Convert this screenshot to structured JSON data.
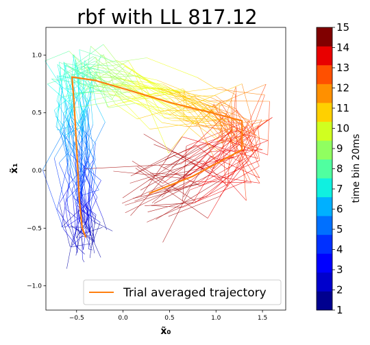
{
  "chart_data": {
    "type": "line",
    "title": "rbf with LL 817.12",
    "xlabel": "x̃₀",
    "ylabel": "x̃₁",
    "xlim": [
      -0.83,
      1.75
    ],
    "ylim": [
      -1.21,
      1.24
    ],
    "xticks": [
      -0.5,
      0.0,
      0.5,
      1.0,
      1.5
    ],
    "xtick_labels": [
      "−0.5",
      "0.0",
      "0.5",
      "1.0",
      "1.5"
    ],
    "yticks": [
      -1.0,
      -0.5,
      0.0,
      0.5,
      1.0
    ],
    "ytick_labels": [
      "−1.0",
      "−0.5",
      "0.0",
      "0.5",
      "1.0"
    ],
    "grid": false,
    "legend": {
      "position": "lower-right",
      "entries": [
        "Trial averaged trajectory"
      ]
    },
    "average_trajectory": {
      "name": "Trial averaged trajectory",
      "color": "#ff7f0e",
      "points": [
        [
          -0.4,
          -0.58
        ],
        [
          -0.44,
          -0.5
        ],
        [
          -0.47,
          -0.25
        ],
        [
          -0.49,
          0.05
        ],
        [
          -0.51,
          0.35
        ],
        [
          -0.53,
          0.62
        ],
        [
          -0.55,
          0.81
        ],
        [
          -0.3,
          0.78
        ],
        [
          0.0,
          0.71
        ],
        [
          0.5,
          0.59
        ],
        [
          0.95,
          0.5
        ],
        [
          1.28,
          0.43
        ],
        [
          1.28,
          0.18
        ],
        [
          0.75,
          -0.05
        ],
        [
          0.28,
          -0.2
        ]
      ]
    },
    "individual_trials": {
      "count": 40,
      "bins": 15,
      "colormap": "jet"
    },
    "colorbar": {
      "label": "time bin 20ms",
      "ticks": [
        1,
        2,
        3,
        4,
        5,
        6,
        7,
        8,
        9,
        10,
        11,
        12,
        13,
        14,
        15
      ],
      "tick_labels": [
        "1",
        "2",
        "3",
        "4",
        "5",
        "6",
        "7",
        "8",
        "9",
        "10",
        "11",
        "12",
        "13",
        "14",
        "15"
      ],
      "colors": [
        "#00008f",
        "#0000cc",
        "#0000ff",
        "#0030ff",
        "#0070ff",
        "#00b0ff",
        "#10f0e0",
        "#50ffa0",
        "#90ff60",
        "#d0ff20",
        "#ffd000",
        "#ff9000",
        "#ff5000",
        "#e80000",
        "#800000"
      ]
    }
  }
}
